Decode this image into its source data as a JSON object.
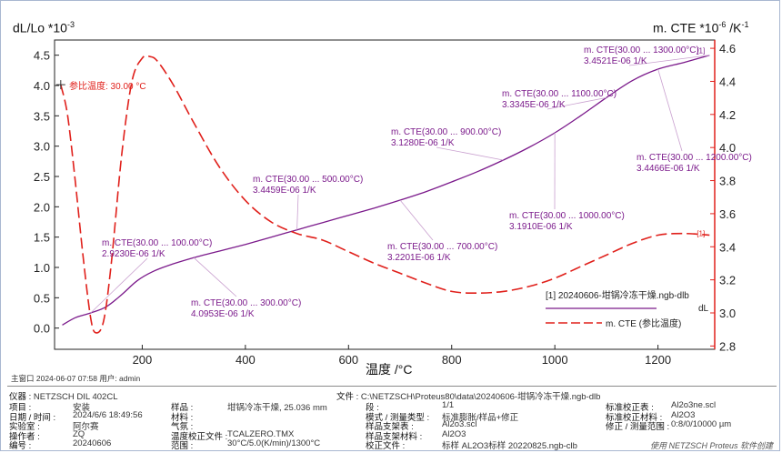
{
  "chart_data": {
    "type": "line",
    "xlabel": "温度 /°C",
    "ylabel_left": "dL/Lo *10-3",
    "ylabel_right": "m. CTE *10-6 /K-1",
    "xlim": [
      30,
      1310
    ],
    "ylim_left": [
      -0.35,
      4.75
    ],
    "ylim_right": [
      2.78,
      4.65
    ],
    "x_ticks": [
      200,
      400,
      600,
      800,
      1000,
      1200
    ],
    "y_left_ticks": [
      0.0,
      0.5,
      1.0,
      1.5,
      2.0,
      2.5,
      3.0,
      3.5,
      4.0,
      4.5
    ],
    "y_right_ticks": [
      2.8,
      3.0,
      3.2,
      3.4,
      3.6,
      3.8,
      4.0,
      4.2,
      4.4,
      4.6
    ],
    "series": [
      {
        "name": "[1]  20240606-坩锅冷冻干燥.ngb-dlb dL",
        "axis": "left",
        "color": "#7b1a8b",
        "style": "solid",
        "points": [
          [
            45,
            0.05
          ],
          [
            70,
            0.17
          ],
          [
            100,
            0.25
          ],
          [
            130,
            0.35
          ],
          [
            160,
            0.55
          ],
          [
            190,
            0.78
          ],
          [
            220,
            0.93
          ],
          [
            250,
            1.03
          ],
          [
            300,
            1.16
          ],
          [
            350,
            1.27
          ],
          [
            400,
            1.38
          ],
          [
            450,
            1.5
          ],
          [
            500,
            1.62
          ],
          [
            550,
            1.74
          ],
          [
            600,
            1.86
          ],
          [
            650,
            1.98
          ],
          [
            700,
            2.11
          ],
          [
            750,
            2.25
          ],
          [
            800,
            2.41
          ],
          [
            850,
            2.58
          ],
          [
            900,
            2.77
          ],
          [
            950,
            2.98
          ],
          [
            1000,
            3.22
          ],
          [
            1050,
            3.5
          ],
          [
            1100,
            3.8
          ],
          [
            1150,
            4.08
          ],
          [
            1200,
            4.27
          ],
          [
            1250,
            4.38
          ],
          [
            1300,
            4.5
          ]
        ]
      },
      {
        "name": "m. CTE (参比温度)",
        "axis": "right",
        "color": "#e0201b",
        "style": "dashed",
        "points": [
          [
            42,
            4.38
          ],
          [
            55,
            4.2
          ],
          [
            70,
            3.8
          ],
          [
            85,
            3.35
          ],
          [
            100,
            2.97
          ],
          [
            110,
            2.88
          ],
          [
            125,
            2.95
          ],
          [
            140,
            3.3
          ],
          [
            160,
            3.95
          ],
          [
            180,
            4.4
          ],
          [
            200,
            4.54
          ],
          [
            215,
            4.55
          ],
          [
            230,
            4.52
          ],
          [
            260,
            4.38
          ],
          [
            300,
            4.15
          ],
          [
            350,
            3.88
          ],
          [
            400,
            3.68
          ],
          [
            450,
            3.55
          ],
          [
            500,
            3.48
          ],
          [
            550,
            3.44
          ],
          [
            600,
            3.37
          ],
          [
            650,
            3.3
          ],
          [
            700,
            3.24
          ],
          [
            750,
            3.18
          ],
          [
            800,
            3.13
          ],
          [
            850,
            3.12
          ],
          [
            900,
            3.13
          ],
          [
            950,
            3.16
          ],
          [
            1000,
            3.21
          ],
          [
            1050,
            3.28
          ],
          [
            1100,
            3.35
          ],
          [
            1150,
            3.42
          ],
          [
            1200,
            3.47
          ],
          [
            1250,
            3.48
          ],
          [
            1300,
            3.47
          ]
        ]
      }
    ],
    "legend": {
      "position": "bottom-right"
    },
    "grid": false,
    "annotations": [
      {
        "lines": [
          "m. CTE(30.00 ... 100.00°C)",
          "2.9230E-06 1/K"
        ]
      },
      {
        "lines": [
          "m. CTE(30.00 ... 300.00°C)",
          "4.0953E-06 1/K"
        ]
      },
      {
        "lines": [
          "m. CTE(30.00 ... 500.00°C)",
          "3.4459E-06 1/K"
        ]
      },
      {
        "lines": [
          "m. CTE(30.00 ... 700.00°C)",
          "3.2201E-06 1/K"
        ]
      },
      {
        "lines": [
          "m. CTE(30.00 ... 900.00°C)",
          "3.1280E-06 1/K"
        ]
      },
      {
        "lines": [
          "m. CTE(30.00 ... 1000.00°C)",
          "3.1910E-06 1/K"
        ]
      },
      {
        "lines": [
          "m. CTE(30.00 ... 1100.00°C)",
          "3.3345E-06 1/K"
        ]
      },
      {
        "lines": [
          "m. CTE(30.00 ... 1200.00°C)",
          "3.4466E-06 1/K"
        ]
      },
      {
        "lines": [
          "m. CTE(30.00 ... 1300.00°C)",
          "3.4521E-06 1/K"
        ]
      }
    ],
    "ref_temp_label": {
      "text": "参比温度:",
      "value": "30.00",
      "unit": "°C"
    },
    "curve_marks": [
      "[1]",
      "[1]"
    ]
  },
  "labels": {
    "x_axis": "温度 /°C",
    "y_left_main": "dL/Lo *10",
    "y_left_exp": "-3",
    "y_right_main": "m. CTE *10",
    "y_right_exp": "-6",
    "y_right_unit": " /K",
    "y_right_unit_exp": "-1"
  },
  "status_bar": "主窗口    2024-06-07 07:58    用户: admin",
  "info": {
    "instrument": {
      "label": "仪器 :",
      "value": "NETZSCH DIL 402CL"
    },
    "file": {
      "label": "文件 :",
      "value": "C:\\NETZSCH\\Proteus80\\data\\20240606-坩锅冷冻干燥.ngb-dlb"
    },
    "rows": [
      [
        {
          "label": "项目 :",
          "value": "安装"
        },
        {
          "label": "样品 :",
          "value": "坩锅冷冻干燥, 25.036 mm"
        },
        {
          "label": "段 :",
          "value": "1/1"
        },
        {
          "label": "标准校正表 :",
          "value": "Al2o3ne.scl"
        }
      ],
      [
        {
          "label": "日期 / 时间 :",
          "value": "2024/6/6 18:49:56"
        },
        {
          "label": "材料 :",
          "value": ""
        },
        {
          "label": "模式 / 测量类型 :",
          "value": "标准膨胀/样品+修正"
        },
        {
          "label": "标准校正材料 :",
          "value": "Al2O3"
        }
      ],
      [
        {
          "label": "实验室 :",
          "value": "阿尔赛"
        },
        {
          "label": "气氛 :",
          "value": ""
        },
        {
          "label": "样品支架表 :",
          "value": "Al2o3.scl"
        },
        {
          "label": "修正 / 测量范围 :",
          "value": "0:8/0/10000 µm"
        }
      ],
      [
        {
          "label": "操作者 :",
          "value": "ZQ"
        },
        {
          "label": "温度校正文件 :",
          "value": "TCALZERO.TMX"
        },
        {
          "label": "样品支架材料 :",
          "value": "Al2O3"
        },
        {
          "label": "",
          "value": ""
        }
      ],
      [
        {
          "label": "编号 :",
          "value": "20240606"
        },
        {
          "label": "范围 :",
          "value": "30°C/5.0(K/min)/1300°C"
        },
        {
          "label": "校正文件 :",
          "value": "标样 AL2O3标样 20220825.ngb-clb"
        },
        {
          "label": "",
          "value": ""
        }
      ]
    ]
  },
  "software": "使用 NETZSCH Proteus 软件创建"
}
